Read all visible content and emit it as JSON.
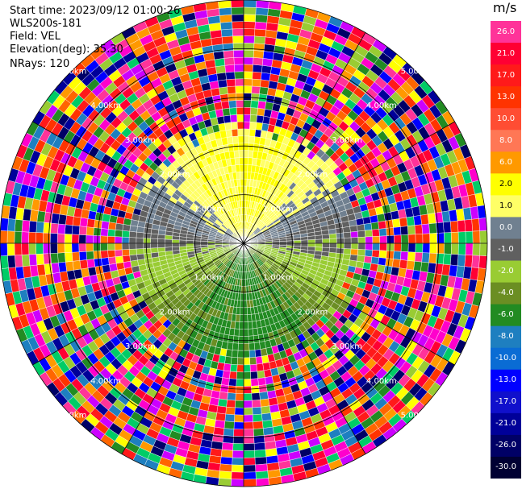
{
  "header": {
    "start_time": "Start time: 2023/09/12 01:00:26",
    "instrument": "WLS200s-181",
    "field": "Field: VEL",
    "elevation": "Elevation(deg): 35.30",
    "nrays": "NRays: 120"
  },
  "colorbar": {
    "title": "m/s",
    "bins": [
      {
        "label": "26.0",
        "color": "#ff3399"
      },
      {
        "label": "21.0",
        "color": "#ff0033"
      },
      {
        "label": "17.0",
        "color": "#ff1a1a"
      },
      {
        "label": "13.0",
        "color": "#ff3300"
      },
      {
        "label": "10.0",
        "color": "#ff4d33"
      },
      {
        "label": "8.0",
        "color": "#ff7755"
      },
      {
        "label": "6.0",
        "color": "#ff9900"
      },
      {
        "label": "2.0",
        "color": "#ffff00"
      },
      {
        "label": "1.0",
        "color": "#ffff66"
      },
      {
        "label": "0.0",
        "color": "#708090"
      },
      {
        "label": "-1.0",
        "color": "#606060"
      },
      {
        "label": "-2.0",
        "color": "#99cc33"
      },
      {
        "label": "-4.0",
        "color": "#6b8e23"
      },
      {
        "label": "-6.0",
        "color": "#228b22"
      },
      {
        "label": "-8.0",
        "color": "#1e7fc0"
      },
      {
        "label": "-10.0",
        "color": "#0a6cd4"
      },
      {
        "label": "-13.0",
        "color": "#0000ff"
      },
      {
        "label": "-17.0",
        "color": "#1010cc"
      },
      {
        "label": "-21.0",
        "color": "#000099"
      },
      {
        "label": "-26.0",
        "color": "#000066"
      },
      {
        "label": "-30.0",
        "color": "#000033"
      }
    ]
  },
  "chart_data": {
    "type": "heatmap",
    "projection": "polar PPI",
    "field": "VEL",
    "units": "m/s",
    "nrays": 120,
    "range_ring_labels": [
      "1.00km",
      "2.00km",
      "3.00km",
      "4.00km",
      "5.00km"
    ],
    "range_rings_km": [
      1,
      2,
      3,
      4,
      5
    ],
    "max_range_km": 5.0,
    "pattern": {
      "north_sector": "positive velocities ~1-2 m/s (yellow)",
      "south_sector": "negative velocities ~-2 to -6 m/s (green)",
      "east_west": "near-zero (gray)",
      "beyond_2.5km": "noisy random values spanning full scale"
    }
  }
}
